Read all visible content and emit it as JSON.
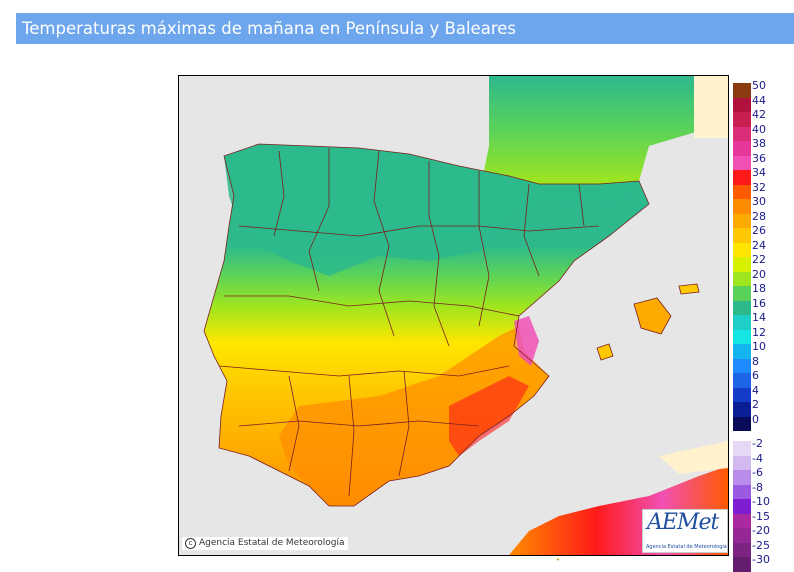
{
  "header": {
    "title": "Temperaturas máximas de mañana en Península y Baleares"
  },
  "map": {
    "credit": "Agencia Estatal de Meteorología",
    "logo_text": "AEMet",
    "logo_sub": "Agencia Estatal de Meteorología",
    "colors": {
      "sea": "#e6e6e6",
      "outside_land": "#fff2cc",
      "border": "#7a1f1f"
    }
  },
  "legend": {
    "items": [
      {
        "label": "50",
        "color": "#8c3a0f"
      },
      {
        "label": "44",
        "color": "#b0123c"
      },
      {
        "label": "42",
        "color": "#c81e50"
      },
      {
        "label": "40",
        "color": "#dc2d78"
      },
      {
        "label": "38",
        "color": "#e6379b"
      },
      {
        "label": "36",
        "color": "#f050b4"
      },
      {
        "label": "34",
        "color": "#ff1a1a"
      },
      {
        "label": "32",
        "color": "#ff5a00"
      },
      {
        "label": "30",
        "color": "#ff8c00"
      },
      {
        "label": "28",
        "color": "#ffaa00"
      },
      {
        "label": "26",
        "color": "#ffc800"
      },
      {
        "label": "24",
        "color": "#ffe600"
      },
      {
        "label": "22",
        "color": "#d7f000"
      },
      {
        "label": "20",
        "color": "#a0e61e"
      },
      {
        "label": "18",
        "color": "#5ad25a"
      },
      {
        "label": "16",
        "color": "#2db98c"
      },
      {
        "label": "14",
        "color": "#1ecfc8"
      },
      {
        "label": "12",
        "color": "#14e6e6"
      },
      {
        "label": "10",
        "color": "#14b4f0"
      },
      {
        "label": "8",
        "color": "#1e8cff"
      },
      {
        "label": "6",
        "color": "#1e64e6"
      },
      {
        "label": "4",
        "color": "#143cc8"
      },
      {
        "label": "2",
        "color": "#0a1e96"
      },
      {
        "label": "0",
        "color": "#0a0a5a"
      },
      {
        "label": "-2",
        "color": "#e6d7f5"
      },
      {
        "label": "-4",
        "color": "#d2b9f0"
      },
      {
        "label": "-6",
        "color": "#b98ceb"
      },
      {
        "label": "-8",
        "color": "#9b5ae1"
      },
      {
        "label": "-10",
        "color": "#7d1ed2"
      },
      {
        "label": "-15",
        "color": "#aa28a0"
      },
      {
        "label": "-20",
        "color": "#962896"
      },
      {
        "label": "-25",
        "color": "#7d2382"
      },
      {
        "label": "-30",
        "color": "#641e6e"
      }
    ]
  }
}
